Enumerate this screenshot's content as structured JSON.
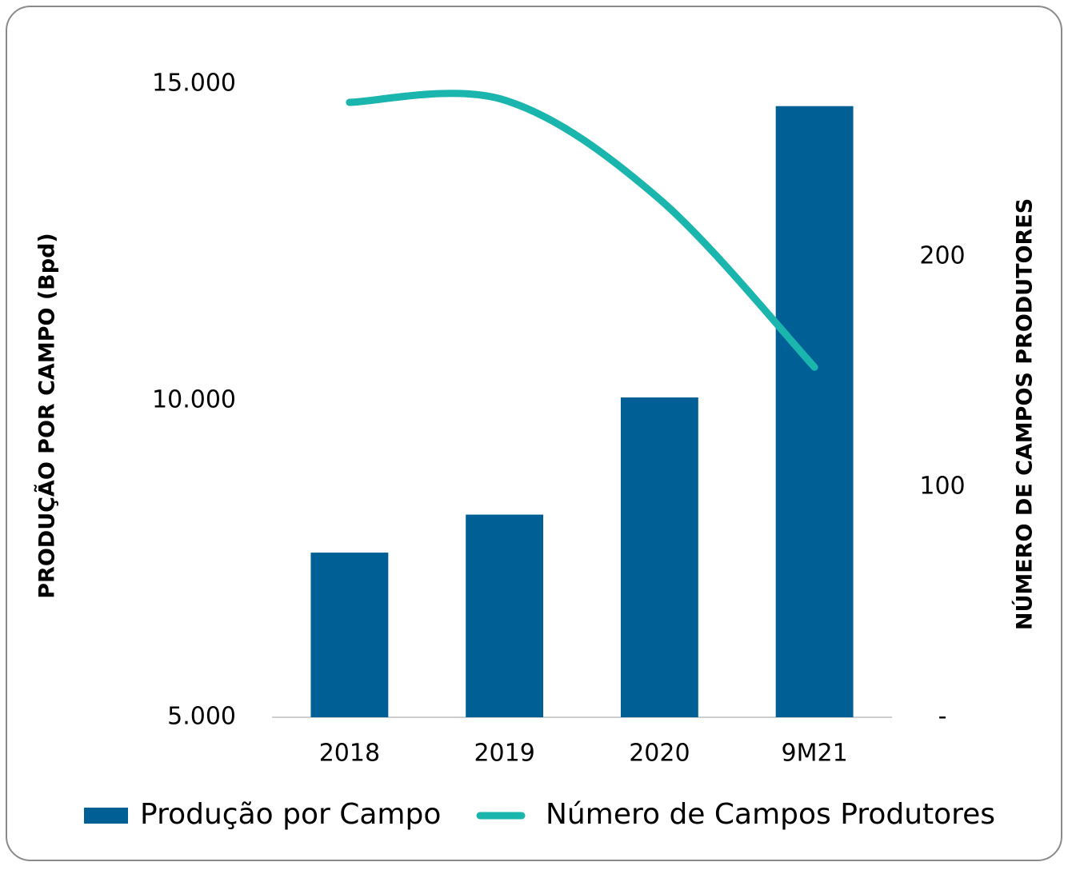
{
  "chart_data": {
    "type": "bar",
    "ylabel": "PRODUÇÃO POR CAMPO (Bpd)",
    "y2label": "NÚMERO DE CAMPOS PRODUTORES",
    "categories": [
      "2018",
      "2019",
      "2020",
      "9M21"
    ],
    "series": [
      {
        "name": "Produção por Campo",
        "type": "bar",
        "color": "#006096",
        "values": [
          7600,
          8200,
          10050,
          14650
        ]
      },
      {
        "name": "Número de Campos Produtores",
        "type": "line",
        "axis": "y2",
        "color": "#1ab5ac",
        "values": [
          267,
          268,
          225,
          152
        ]
      }
    ],
    "ylim": [
      5000,
      15000
    ],
    "yticks": [
      {
        "value": 5000,
        "label": "5.000"
      },
      {
        "value": 10000,
        "label": "10.000"
      },
      {
        "value": 15000,
        "label": "15.000"
      }
    ],
    "y2lim": [
      0,
      275
    ],
    "y2ticks": [
      {
        "value": 0,
        "label": "-"
      },
      100,
      200
    ],
    "legend": "bottom"
  }
}
